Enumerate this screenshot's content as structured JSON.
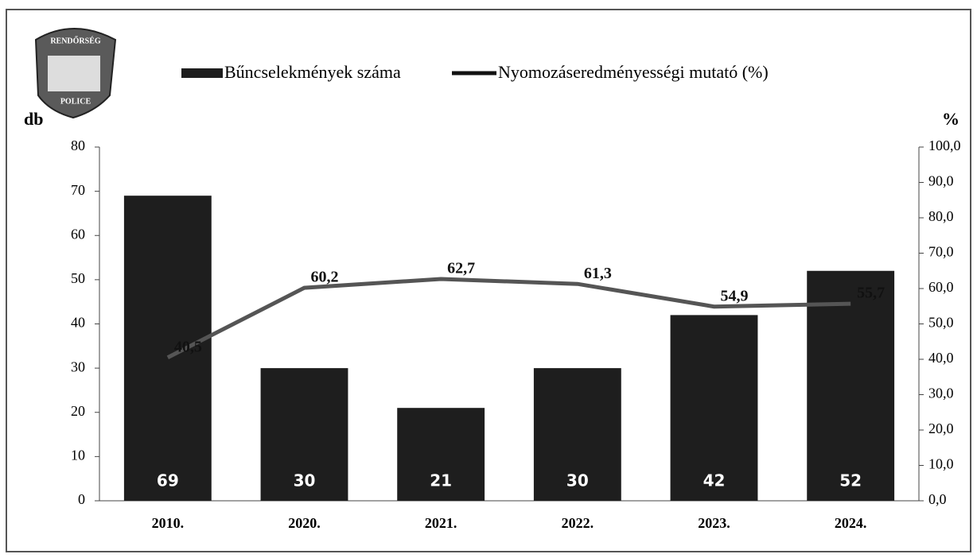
{
  "logo": {
    "top": "RENDŐRSÉG",
    "bottom": "POLICE"
  },
  "chart_data": {
    "type": "bar-line",
    "y_label": "db",
    "y2_label": "%",
    "categories": [
      "2010.",
      "2020.",
      "2021.",
      "2022.",
      "2023.",
      "2024."
    ],
    "series": [
      {
        "name": "Bűncselekmények száma",
        "type": "bar",
        "color": "#1e1e1e",
        "values": [
          69,
          30,
          21,
          30,
          42,
          52
        ]
      },
      {
        "name": "Nyomozáseredményességi mutató (%)",
        "type": "line",
        "axis": "y2",
        "color": "#555555",
        "values": [
          40.5,
          60.2,
          62.7,
          61.3,
          54.9,
          55.7
        ],
        "value_labels": [
          "40,5",
          "60,2",
          "62,7",
          "61,3",
          "54,9",
          "55,7"
        ]
      }
    ],
    "ylim": [
      0,
      80
    ],
    "yticks": [
      0,
      10,
      20,
      30,
      40,
      50,
      60,
      70,
      80
    ],
    "y2lim": [
      0,
      100
    ],
    "y2ticks": [
      {
        "value": 0,
        "label": "0,0"
      },
      {
        "value": 10,
        "label": "10,0"
      },
      {
        "value": 20,
        "label": "20,0"
      },
      {
        "value": 30,
        "label": "30,0"
      },
      {
        "value": 40,
        "label": "40,0"
      },
      {
        "value": 50,
        "label": "50,0"
      },
      {
        "value": 60,
        "label": "60,0"
      },
      {
        "value": 70,
        "label": "70,0"
      },
      {
        "value": 80,
        "label": "80,0"
      },
      {
        "value": 90,
        "label": "90,0"
      },
      {
        "value": 100,
        "label": "100,0"
      }
    ]
  }
}
